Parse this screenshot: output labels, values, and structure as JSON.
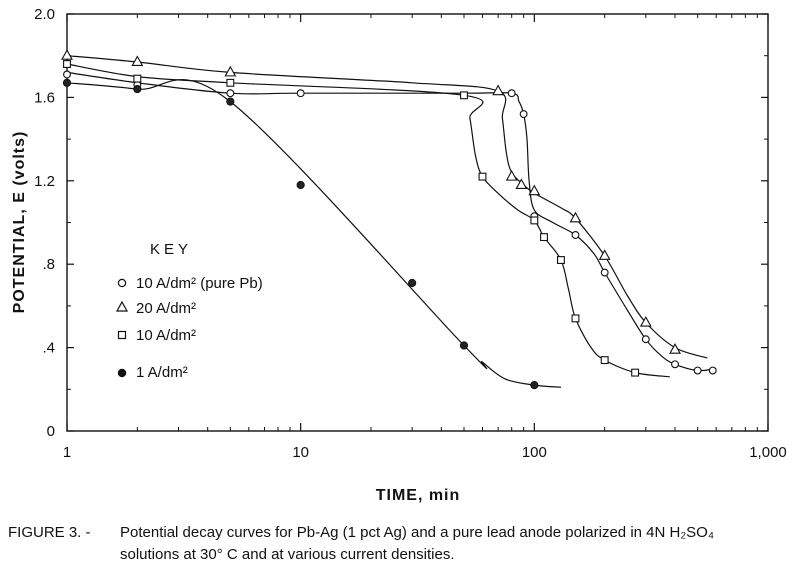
{
  "chart_data": {
    "type": "line",
    "xscale": "log",
    "xlim": [
      1,
      1000
    ],
    "ylim": [
      0,
      2.0
    ],
    "xticks": [
      1,
      10,
      100,
      1000
    ],
    "xtick_labels": [
      "1",
      "10",
      "100",
      "1,000"
    ],
    "yticks": [
      0,
      0.4,
      0.8,
      1.2,
      1.6,
      2.0
    ],
    "ytick_labels": [
      "0",
      ".4",
      ".8",
      "1.2",
      "1.6",
      "2.0"
    ],
    "xlabel": "TIME, min",
    "ylabel": "POTENTIAL, E (volts)",
    "legend_title": "KEY",
    "legend_position": "left",
    "series": [
      {
        "name": "10 A/dm² (pure Pb)",
        "marker": "open-circle",
        "points": [
          [
            1,
            1.71
          ],
          [
            2,
            1.66
          ],
          [
            5,
            1.62
          ],
          [
            10,
            1.62
          ],
          [
            80,
            1.62
          ],
          [
            90,
            1.52
          ],
          [
            100,
            1.03
          ],
          [
            150,
            0.94
          ],
          [
            200,
            0.76
          ],
          [
            300,
            0.44
          ],
          [
            400,
            0.32
          ],
          [
            500,
            0.29
          ],
          [
            580,
            0.29
          ]
        ],
        "curve": [
          [
            1,
            1.72
          ],
          [
            2,
            1.67
          ],
          [
            5,
            1.62
          ],
          [
            10,
            1.62
          ],
          [
            50,
            1.62
          ],
          [
            80,
            1.62
          ],
          [
            86,
            1.58
          ],
          [
            90,
            1.52
          ],
          [
            93,
            1.4
          ],
          [
            95,
            1.2
          ],
          [
            100,
            1.06
          ],
          [
            120,
            1.0
          ],
          [
            150,
            0.94
          ],
          [
            180,
            0.85
          ],
          [
            200,
            0.76
          ],
          [
            250,
            0.58
          ],
          [
            300,
            0.44
          ],
          [
            350,
            0.36
          ],
          [
            400,
            0.32
          ],
          [
            500,
            0.29
          ],
          [
            600,
            0.3
          ]
        ]
      },
      {
        "name": "20 A/dm²",
        "marker": "open-triangle",
        "points": [
          [
            1,
            1.8
          ],
          [
            2,
            1.77
          ],
          [
            5,
            1.72
          ],
          [
            70,
            1.63
          ],
          [
            80,
            1.22
          ],
          [
            88,
            1.18
          ],
          [
            100,
            1.15
          ],
          [
            150,
            1.02
          ],
          [
            200,
            0.84
          ],
          [
            300,
            0.52
          ],
          [
            400,
            0.39
          ]
        ],
        "curve": [
          [
            1,
            1.8
          ],
          [
            2,
            1.77
          ],
          [
            5,
            1.72
          ],
          [
            30,
            1.67
          ],
          [
            70,
            1.63
          ],
          [
            73,
            1.5
          ],
          [
            76,
            1.33
          ],
          [
            80,
            1.24
          ],
          [
            90,
            1.18
          ],
          [
            100,
            1.14
          ],
          [
            130,
            1.07
          ],
          [
            150,
            1.02
          ],
          [
            200,
            0.84
          ],
          [
            250,
            0.65
          ],
          [
            300,
            0.52
          ],
          [
            400,
            0.4
          ],
          [
            550,
            0.35
          ]
        ]
      },
      {
        "name": "10 A/dm²",
        "marker": "open-square",
        "points": [
          [
            1,
            1.76
          ],
          [
            2,
            1.69
          ],
          [
            5,
            1.67
          ],
          [
            50,
            1.61
          ],
          [
            60,
            1.22
          ],
          [
            100,
            1.01
          ],
          [
            110,
            0.93
          ],
          [
            130,
            0.82
          ],
          [
            150,
            0.54
          ],
          [
            200,
            0.34
          ],
          [
            270,
            0.28
          ]
        ],
        "curve": [
          [
            1,
            1.76
          ],
          [
            2,
            1.7
          ],
          [
            5,
            1.67
          ],
          [
            50,
            1.61
          ],
          [
            53,
            1.5
          ],
          [
            56,
            1.32
          ],
          [
            60,
            1.22
          ],
          [
            70,
            1.14
          ],
          [
            85,
            1.06
          ],
          [
            100,
            1.01
          ],
          [
            110,
            0.93
          ],
          [
            130,
            0.82
          ],
          [
            140,
            0.68
          ],
          [
            150,
            0.54
          ],
          [
            175,
            0.4
          ],
          [
            200,
            0.34
          ],
          [
            270,
            0.28
          ],
          [
            380,
            0.26
          ]
        ]
      },
      {
        "name": "1 A/dm²",
        "marker": "filled-circle",
        "points": [
          [
            1,
            1.67
          ],
          [
            2,
            1.64
          ],
          [
            5,
            1.58
          ],
          [
            10,
            1.18
          ],
          [
            30,
            0.71
          ],
          [
            50,
            0.41
          ],
          [
            100,
            0.22
          ]
        ],
        "curve": [
          [
            1,
            1.67
          ],
          [
            2,
            1.64
          ],
          [
            5,
            1.58
          ],
          [
            50,
            0.41
          ],
          [
            60,
            0.33
          ],
          [
            75,
            0.25
          ],
          [
            100,
            0.22
          ],
          [
            130,
            0.21
          ]
        ]
      }
    ]
  },
  "legend": {
    "title": "KEY",
    "items": [
      {
        "label": "10 A/dm² (pure Pb)"
      },
      {
        "label": "20 A/dm²"
      },
      {
        "label": "10 A/dm²"
      },
      {
        "label": "1 A/dm²"
      }
    ]
  },
  "caption": {
    "lead": "FIGURE 3. -",
    "line1": "Potential decay curves for Pb-Ag (1 pct Ag) and a pure lead anode polarized in 4N H₂SO₄",
    "line2": "solutions at 30° C and at various current densities."
  }
}
